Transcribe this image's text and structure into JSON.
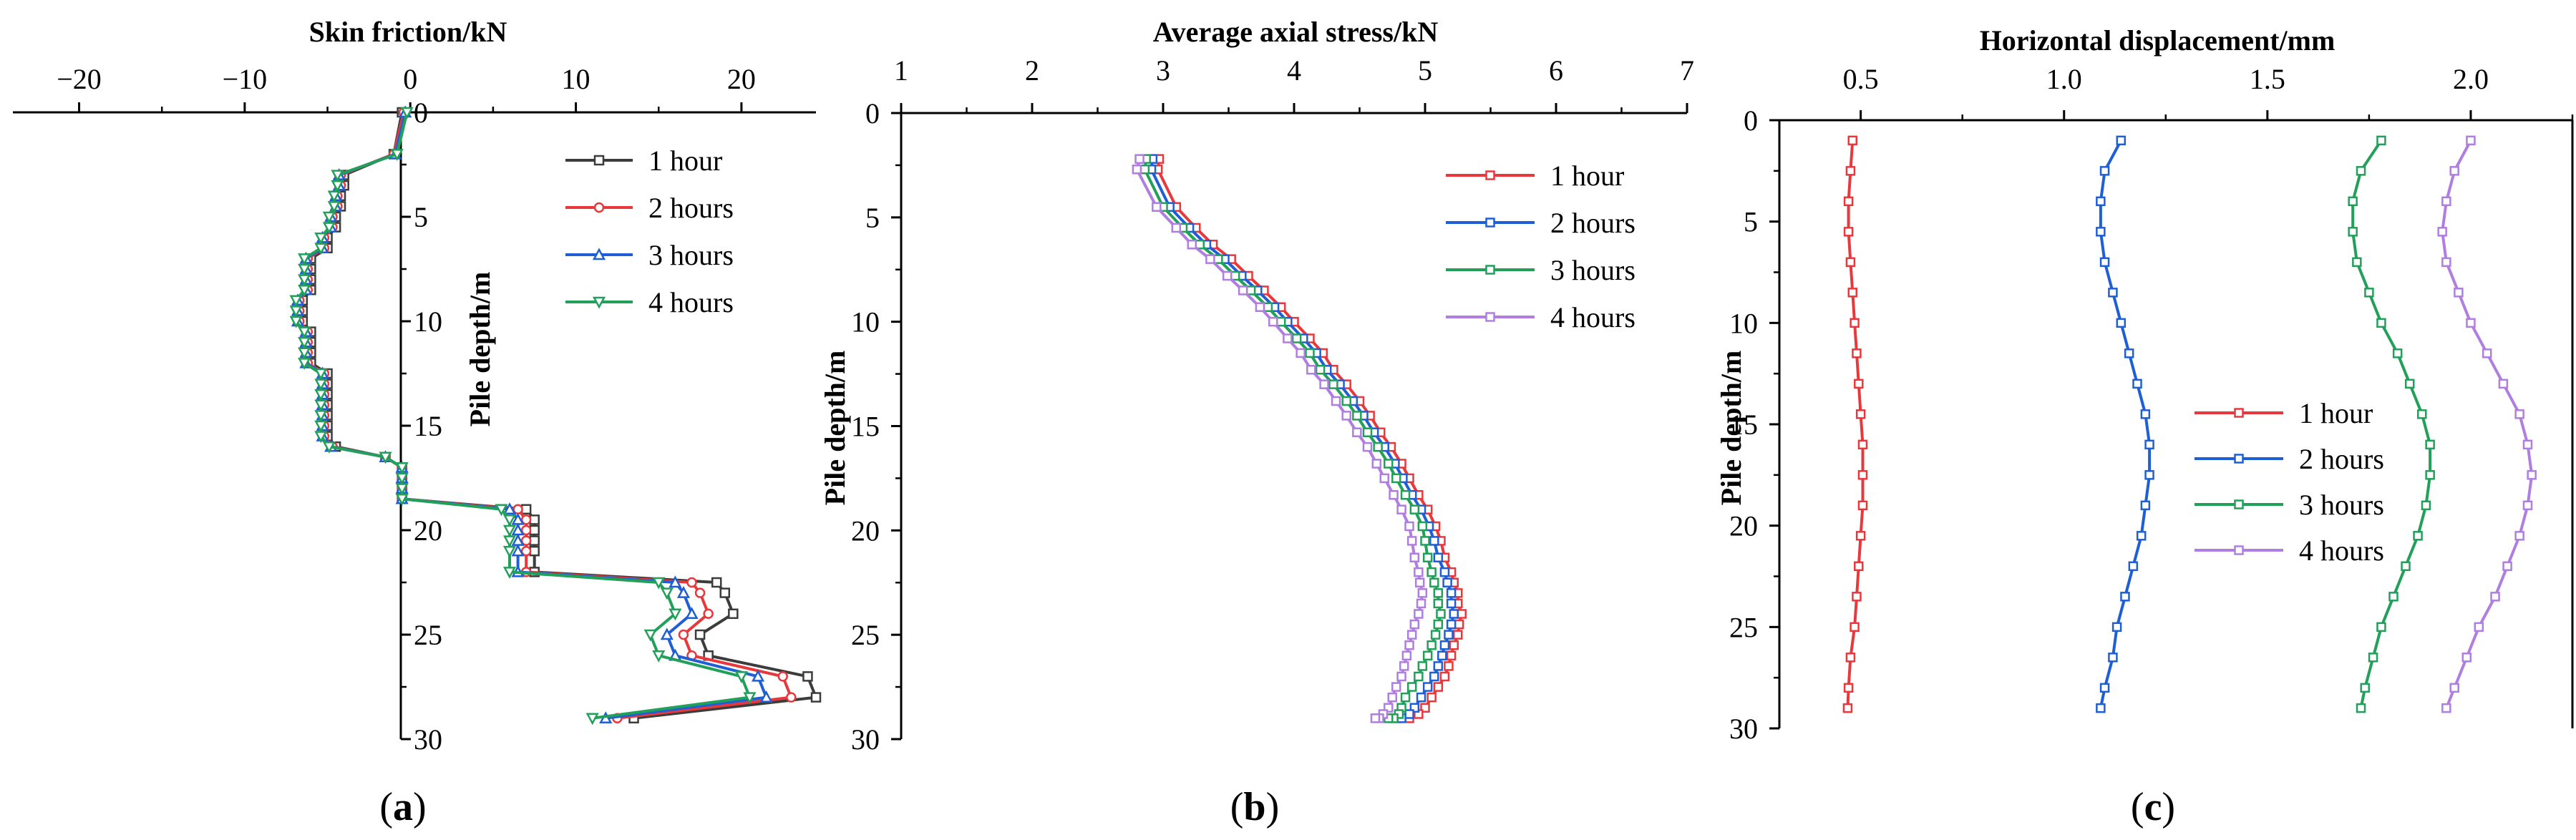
{
  "chart_data": [
    {
      "type": "line",
      "panel": "(a)",
      "panel_letter": "a",
      "xlabel": "Skin friction/kN",
      "ylabel": "Pile depth/m",
      "xlim": [
        -24,
        24.5
      ],
      "ylim": [
        0,
        30
      ],
      "xticks": [
        -20,
        -10,
        0,
        10,
        20
      ],
      "xtick_labels": [
        "−20",
        "−10",
        "0",
        "10",
        "20"
      ],
      "yticks": [
        0,
        5,
        10,
        15,
        20,
        25,
        30
      ],
      "ytick_labels": [
        "0",
        "5",
        "10",
        "15",
        "20",
        "25",
        "30"
      ],
      "legend": [
        "1 hour",
        "2 hours",
        "3 hours",
        "4 hours"
      ],
      "series": [
        {
          "name": "1 hour",
          "color": "#3c3c3c",
          "marker": "square",
          "x": [
            -0.5,
            -1,
            -4,
            -4,
            -4.2,
            -4.2,
            -4.5,
            -4.5,
            -5,
            -5,
            -6,
            -6,
            -6,
            -6,
            -6.5,
            -6.5,
            -6.5,
            -6,
            -6,
            -6,
            -6,
            -5,
            -5,
            -5,
            -5,
            -5,
            -5,
            -5,
            -4.5,
            -1.5,
            -0.5,
            -0.5,
            -0.5,
            -0.5,
            7,
            7.5,
            7.5,
            7.5,
            7.5,
            7.5,
            18.5,
            19,
            19.5,
            17.5,
            18,
            24,
            24.5,
            13.5
          ],
          "y": [
            0,
            2,
            3,
            3.5,
            4,
            4.5,
            5,
            5.5,
            6,
            6.5,
            7,
            7.5,
            8,
            8.5,
            9,
            9.5,
            10,
            10.5,
            11,
            11.5,
            12,
            12.5,
            13,
            13.5,
            14,
            14.5,
            15,
            15.5,
            16,
            16.5,
            17,
            17.5,
            18,
            18.5,
            19,
            19.5,
            20,
            20.5,
            21,
            22,
            22.5,
            23,
            24,
            25,
            26,
            27,
            28,
            29
          ]
        },
        {
          "name": "2 hours",
          "color": "#e8383c",
          "marker": "circle",
          "x": [
            -0.4,
            -1,
            -4.2,
            -4.2,
            -4.4,
            -4.4,
            -4.7,
            -4.7,
            -5.2,
            -5.2,
            -6.2,
            -6.2,
            -6.2,
            -6.2,
            -6.7,
            -6.7,
            -6.7,
            -6.2,
            -6.2,
            -6.2,
            -6.2,
            -5.2,
            -5.2,
            -5.2,
            -5.2,
            -5.2,
            -5.2,
            -5.2,
            -4.7,
            -1.5,
            -0.5,
            -0.5,
            -0.5,
            -0.5,
            6.5,
            7,
            7,
            7,
            7,
            7,
            17,
            17.5,
            18,
            16.5,
            17,
            22.5,
            23,
            12.5
          ],
          "y": [
            0,
            2,
            3,
            3.5,
            4,
            4.5,
            5,
            5.5,
            6,
            6.5,
            7,
            7.5,
            8,
            8.5,
            9,
            9.5,
            10,
            10.5,
            11,
            11.5,
            12,
            12.5,
            13,
            13.5,
            14,
            14.5,
            15,
            15.5,
            16,
            16.5,
            17,
            17.5,
            18,
            18.5,
            19,
            19.5,
            20,
            20.5,
            21,
            22,
            22.5,
            23,
            24,
            25,
            26,
            27,
            28,
            29
          ]
        },
        {
          "name": "3 hours",
          "color": "#1f5fd6",
          "marker": "triangle-up",
          "x": [
            -0.3,
            -0.9,
            -4.3,
            -4.3,
            -4.5,
            -4.5,
            -4.8,
            -4.8,
            -5.3,
            -5.3,
            -6.3,
            -6.3,
            -6.3,
            -6.3,
            -6.8,
            -6.8,
            -6.8,
            -6.3,
            -6.3,
            -6.3,
            -6.3,
            -5.3,
            -5.3,
            -5.3,
            -5.3,
            -5.3,
            -5.3,
            -5.3,
            -4.8,
            -1.5,
            -0.5,
            -0.5,
            -0.5,
            -0.5,
            6,
            6.5,
            6.5,
            6.5,
            6.5,
            6.5,
            16,
            16.5,
            17,
            15.5,
            16,
            21,
            21.5,
            11.8
          ],
          "y": [
            0,
            2,
            3,
            3.5,
            4,
            4.5,
            5,
            5.5,
            6,
            6.5,
            7,
            7.5,
            8,
            8.5,
            9,
            9.5,
            10,
            10.5,
            11,
            11.5,
            12,
            12.5,
            13,
            13.5,
            14,
            14.5,
            15,
            15.5,
            16,
            16.5,
            17,
            17.5,
            18,
            18.5,
            19,
            19.5,
            20,
            20.5,
            21,
            22,
            22.5,
            23,
            24,
            25,
            26,
            27,
            28,
            29
          ]
        },
        {
          "name": "4 hours",
          "color": "#22a05a",
          "marker": "triangle-down",
          "x": [
            -0.2,
            -0.8,
            -4.4,
            -4.4,
            -4.6,
            -4.6,
            -4.9,
            -4.9,
            -5.4,
            -5.4,
            -6.4,
            -6.4,
            -6.4,
            -6.4,
            -6.9,
            -6.9,
            -6.9,
            -6.4,
            -6.4,
            -6.4,
            -6.4,
            -5.4,
            -5.4,
            -5.4,
            -5.4,
            -5.4,
            -5.4,
            -5.4,
            -4.9,
            -1.5,
            -0.5,
            -0.5,
            -0.5,
            -0.5,
            5.5,
            6,
            6,
            6,
            6,
            6,
            15,
            15.5,
            16,
            14.5,
            15,
            20,
            20.5,
            11
          ],
          "y": [
            0,
            2,
            3,
            3.5,
            4,
            4.5,
            5,
            5.5,
            6,
            6.5,
            7,
            7.5,
            8,
            8.5,
            9,
            9.5,
            10,
            10.5,
            11,
            11.5,
            12,
            12.5,
            13,
            13.5,
            14,
            14.5,
            15,
            15.5,
            16,
            16.5,
            17,
            17.5,
            18,
            18.5,
            19,
            19.5,
            20,
            20.5,
            21,
            22,
            22.5,
            23,
            24,
            25,
            26,
            27,
            28,
            29
          ]
        }
      ]
    },
    {
      "type": "line",
      "panel": "(b)",
      "panel_letter": "b",
      "xlabel": "Average axial stress/kN",
      "ylabel": "Pile depth/m",
      "xlim": [
        1,
        7
      ],
      "ylim": [
        0,
        30
      ],
      "xticks": [
        1,
        2,
        3,
        4,
        5,
        6,
        7
      ],
      "xtick_labels": [
        "1",
        "2",
        "3",
        "4",
        "5",
        "6",
        "7"
      ],
      "yticks": [
        0,
        5,
        10,
        15,
        20,
        25,
        30
      ],
      "ytick_labels": [
        "0",
        "5",
        "10",
        "15",
        "20",
        "25",
        "30"
      ],
      "legend": [
        "1 hour",
        "2 hours",
        "3 hours",
        "4 hours"
      ],
      "series": [
        {
          "name": "1 hour",
          "color": "#e8383c",
          "marker": "square",
          "x": [
            2.97,
            2.96,
            3.1,
            3.25,
            3.38,
            3.52,
            3.65,
            3.77,
            3.9,
            4.0,
            4.12,
            4.22,
            4.3,
            4.4,
            4.5,
            4.58,
            4.66,
            4.74,
            4.82,
            4.88,
            4.95,
            5.02,
            5.08,
            5.12,
            5.15,
            5.2,
            5.22,
            5.25,
            5.25,
            5.28,
            5.26,
            5.25,
            5.22,
            5.2,
            5.18,
            5.15,
            5.1,
            5.05,
            5.0,
            4.95,
            4.88,
            4.8
          ],
          "y": [
            2.2,
            2.7,
            4.5,
            5.5,
            6.3,
            7,
            7.8,
            8.5,
            9.3,
            10,
            10.8,
            11.5,
            12.3,
            13,
            13.8,
            14.5,
            15.3,
            16,
            16.8,
            17.5,
            18.3,
            19,
            19.8,
            20.5,
            21.3,
            22,
            22.5,
            23,
            23.5,
            24,
            24.5,
            25,
            25.5,
            26,
            26.5,
            27,
            27.5,
            28,
            28.5,
            28.8,
            29,
            29
          ]
        },
        {
          "name": "2 hours",
          "color": "#1f5fd6",
          "marker": "square",
          "x": [
            2.92,
            2.91,
            3.05,
            3.2,
            3.33,
            3.47,
            3.6,
            3.72,
            3.85,
            3.95,
            4.07,
            4.17,
            4.25,
            4.35,
            4.45,
            4.53,
            4.61,
            4.69,
            4.77,
            4.83,
            4.9,
            4.97,
            5.03,
            5.07,
            5.1,
            5.15,
            5.17,
            5.2,
            5.2,
            5.22,
            5.2,
            5.18,
            5.15,
            5.13,
            5.1,
            5.07,
            5.02,
            4.97,
            4.92,
            4.88,
            4.82,
            4.76
          ],
          "y": [
            2.2,
            2.7,
            4.5,
            5.5,
            6.3,
            7,
            7.8,
            8.5,
            9.3,
            10,
            10.8,
            11.5,
            12.3,
            13,
            13.8,
            14.5,
            15.3,
            16,
            16.8,
            17.5,
            18.3,
            19,
            19.8,
            20.5,
            21.3,
            22,
            22.5,
            23,
            23.5,
            24,
            24.5,
            25,
            25.5,
            26,
            26.5,
            27,
            27.5,
            28,
            28.5,
            28.8,
            29,
            29
          ]
        },
        {
          "name": "3 hours",
          "color": "#22a05a",
          "marker": "square",
          "x": [
            2.87,
            2.86,
            3.0,
            3.15,
            3.28,
            3.42,
            3.55,
            3.67,
            3.8,
            3.9,
            4.02,
            4.12,
            4.2,
            4.3,
            4.4,
            4.48,
            4.56,
            4.64,
            4.72,
            4.78,
            4.85,
            4.92,
            4.98,
            5.0,
            5.02,
            5.05,
            5.07,
            5.1,
            5.1,
            5.12,
            5.1,
            5.08,
            5.05,
            5.02,
            4.98,
            4.95,
            4.9,
            4.85,
            4.82,
            4.8,
            4.76,
            4.72
          ],
          "y": [
            2.2,
            2.7,
            4.5,
            5.5,
            6.3,
            7,
            7.8,
            8.5,
            9.3,
            10,
            10.8,
            11.5,
            12.3,
            13,
            13.8,
            14.5,
            15.3,
            16,
            16.8,
            17.5,
            18.3,
            19,
            19.8,
            20.5,
            21.3,
            22,
            22.5,
            23,
            23.5,
            24,
            24.5,
            25,
            25.5,
            26,
            26.5,
            27,
            27.5,
            28,
            28.5,
            28.8,
            29,
            29
          ]
        },
        {
          "name": "4 hours",
          "color": "#b07ee0",
          "marker": "square",
          "x": [
            2.82,
            2.8,
            2.95,
            3.1,
            3.22,
            3.36,
            3.49,
            3.61,
            3.74,
            3.84,
            3.95,
            4.05,
            4.13,
            4.23,
            4.32,
            4.4,
            4.48,
            4.56,
            4.63,
            4.69,
            4.76,
            4.82,
            4.88,
            4.9,
            4.92,
            4.95,
            4.96,
            4.98,
            4.97,
            4.95,
            4.92,
            4.9,
            4.88,
            4.86,
            4.84,
            4.82,
            4.78,
            4.75,
            4.72,
            4.68,
            4.65,
            4.62
          ],
          "y": [
            2.2,
            2.7,
            4.5,
            5.5,
            6.3,
            7,
            7.8,
            8.5,
            9.3,
            10,
            10.8,
            11.5,
            12.3,
            13,
            13.8,
            14.5,
            15.3,
            16,
            16.8,
            17.5,
            18.3,
            19,
            19.8,
            20.5,
            21.3,
            22,
            22.5,
            23,
            23.5,
            24,
            24.5,
            25,
            25.5,
            26,
            26.5,
            27,
            27.5,
            28,
            28.5,
            28.8,
            29,
            29
          ]
        }
      ]
    },
    {
      "type": "line",
      "panel": "(c)",
      "panel_letter": "c",
      "xlabel": "Horizontal displacement/mm",
      "ylabel": "Pile depth/m",
      "xlim": [
        0.3,
        2.25
      ],
      "ylim": [
        0,
        30
      ],
      "xticks": [
        0.5,
        1.0,
        1.5,
        2.0
      ],
      "xtick_labels": [
        "0.5",
        "1.0",
        "1.5",
        "2.0"
      ],
      "yticks": [
        0,
        5,
        10,
        15,
        20,
        25,
        30
      ],
      "ytick_labels": [
        "0",
        "5",
        "10",
        "15",
        "20",
        "25",
        "30"
      ],
      "legend": [
        "1 hour",
        "2 hours",
        "3 hours",
        "4 hours"
      ],
      "series": [
        {
          "name": "1 hour",
          "color": "#e8383c",
          "marker": "square",
          "x": [
            0.48,
            0.475,
            0.47,
            0.47,
            0.475,
            0.48,
            0.485,
            0.49,
            0.495,
            0.5,
            0.505,
            0.505,
            0.505,
            0.5,
            0.495,
            0.49,
            0.485,
            0.475,
            0.47,
            0.468
          ],
          "y": [
            1,
            2.5,
            4,
            5.5,
            7,
            8.5,
            10,
            11.5,
            13,
            14.5,
            16,
            17.5,
            19,
            20.5,
            22,
            23.5,
            25,
            26.5,
            28,
            29
          ]
        },
        {
          "name": "2 hours",
          "color": "#1f5fd6",
          "marker": "square",
          "x": [
            1.14,
            1.1,
            1.09,
            1.09,
            1.1,
            1.12,
            1.14,
            1.16,
            1.18,
            1.2,
            1.21,
            1.21,
            1.2,
            1.19,
            1.17,
            1.15,
            1.13,
            1.12,
            1.1,
            1.09
          ],
          "y": [
            1,
            2.5,
            4,
            5.5,
            7,
            8.5,
            10,
            11.5,
            13,
            14.5,
            16,
            17.5,
            19,
            20.5,
            22,
            23.5,
            25,
            26.5,
            28,
            29
          ]
        },
        {
          "name": "3 hours",
          "color": "#22a05a",
          "marker": "square",
          "x": [
            1.78,
            1.73,
            1.71,
            1.71,
            1.72,
            1.75,
            1.78,
            1.82,
            1.85,
            1.88,
            1.9,
            1.9,
            1.89,
            1.87,
            1.84,
            1.81,
            1.78,
            1.76,
            1.74,
            1.73
          ],
          "y": [
            1,
            2.5,
            4,
            5.5,
            7,
            8.5,
            10,
            11.5,
            13,
            14.5,
            16,
            17.5,
            19,
            20.5,
            22,
            23.5,
            25,
            26.5,
            28,
            29
          ]
        },
        {
          "name": "4 hours",
          "color": "#b07ee0",
          "marker": "square",
          "x": [
            2.0,
            1.96,
            1.94,
            1.93,
            1.94,
            1.97,
            2.0,
            2.04,
            2.08,
            2.12,
            2.14,
            2.15,
            2.14,
            2.12,
            2.09,
            2.06,
            2.02,
            1.99,
            1.96,
            1.94
          ],
          "y": [
            1,
            2.5,
            4,
            5.5,
            7,
            8.5,
            10,
            11.5,
            13,
            14.5,
            16,
            17.5,
            19,
            20.5,
            22,
            23.5,
            25,
            26.5,
            28,
            29
          ]
        }
      ]
    }
  ]
}
